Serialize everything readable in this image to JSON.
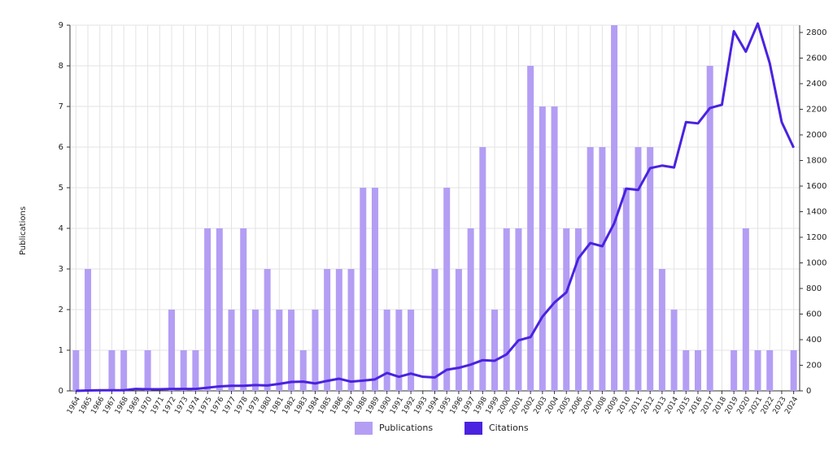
{
  "chart_data": {
    "type": "bar_line",
    "y_label": "Publications",
    "categories": [
      "1964",
      "1965",
      "1966",
      "1967",
      "1968",
      "1969",
      "1970",
      "1971",
      "1972",
      "1973",
      "1974",
      "1975",
      "1976",
      "1977",
      "1978",
      "1979",
      "1980",
      "1981",
      "1982",
      "1983",
      "1984",
      "1985",
      "1986",
      "1987",
      "1988",
      "1989",
      "1990",
      "1991",
      "1992",
      "1993",
      "1994",
      "1995",
      "1996",
      "1997",
      "1998",
      "1999",
      "2000",
      "2001",
      "2002",
      "2003",
      "2004",
      "2005",
      "2006",
      "2007",
      "2008",
      "2009",
      "2010",
      "2011",
      "2012",
      "2013",
      "2014",
      "2015",
      "2016",
      "2017",
      "2018",
      "2019",
      "2020",
      "2021",
      "2022",
      "2023",
      "2024"
    ],
    "series": [
      {
        "name": "Publications",
        "color": "#b39ef4",
        "type": "bar",
        "values": [
          1,
          3,
          0,
          1,
          1,
          0,
          1,
          0,
          2,
          1,
          1,
          4,
          4,
          2,
          4,
          2,
          3,
          2,
          2,
          1,
          2,
          3,
          3,
          3,
          5,
          5,
          2,
          2,
          2,
          0,
          3,
          5,
          3,
          4,
          6,
          2,
          4,
          4,
          8,
          7,
          7,
          4,
          4,
          6,
          6,
          9,
          5,
          6,
          6,
          3,
          2,
          1,
          1,
          8,
          0,
          1,
          4,
          1,
          1,
          0,
          1
        ]
      },
      {
        "name": "Citations",
        "color": "#4a22e0",
        "type": "line",
        "axis": "y2",
        "values": [
          0,
          3,
          5,
          5,
          5,
          15,
          13,
          13,
          15,
          15,
          15,
          25,
          35,
          40,
          40,
          45,
          42,
          55,
          70,
          72,
          58,
          78,
          95,
          72,
          80,
          90,
          140,
          110,
          135,
          110,
          105,
          165,
          180,
          205,
          240,
          235,
          285,
          395,
          420,
          580,
          690,
          770,
          1035,
          1155,
          1130,
          1310,
          1580,
          1570,
          1740,
          1760,
          1745,
          2100,
          2090,
          2210,
          2235,
          2810,
          2650,
          2870,
          2560,
          2100,
          1900
        ]
      }
    ],
    "ylim": [
      0,
      9
    ],
    "yticks": [
      0,
      1,
      2,
      3,
      4,
      5,
      6,
      7,
      8,
      9
    ],
    "y2lim": [
      0,
      2857
    ],
    "y2ticks": [
      0,
      200,
      400,
      600,
      800,
      1000,
      1200,
      1400,
      1600,
      1800,
      2000,
      2200,
      2400,
      2600,
      2800
    ],
    "grid": true
  }
}
